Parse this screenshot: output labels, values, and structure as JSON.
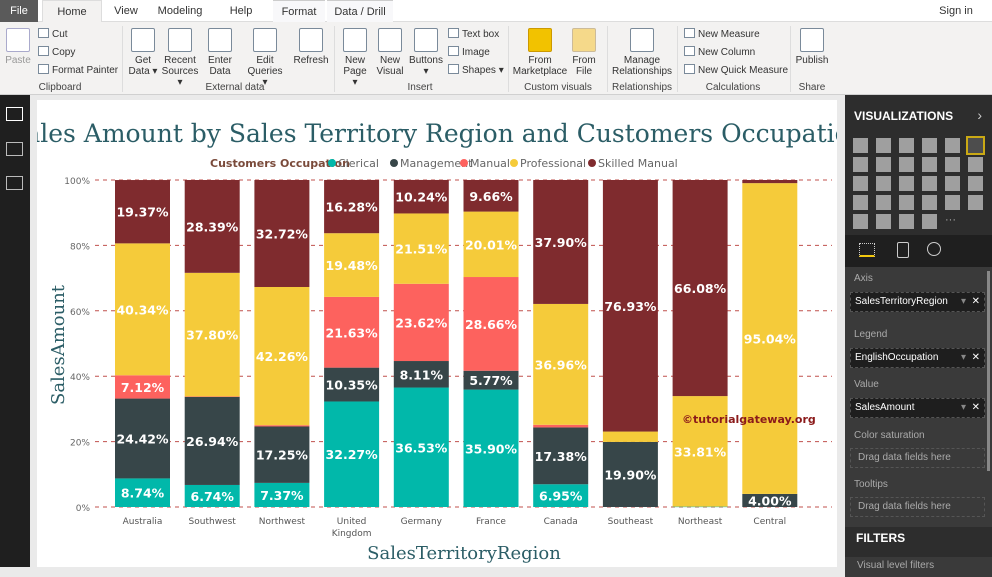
{
  "tabs": [
    "File",
    "Home",
    "View",
    "Modeling",
    "Help",
    "Format",
    "Data / Drill"
  ],
  "sign_in": "Sign in",
  "ribbon": {
    "clipboard": {
      "paste": "Paste",
      "cut": "Cut",
      "copy": "Copy",
      "format_painter": "Format Painter",
      "group": "Clipboard"
    },
    "external": {
      "get_data": "Get Data ▾",
      "recent": "Recent Sources ▾",
      "enter": "Enter Data",
      "edit": "Edit Queries ▾",
      "refresh": "Refresh",
      "group": "External data"
    },
    "insert": {
      "new_page": "New Page ▾",
      "new_visual": "New Visual",
      "buttons": "Buttons ▾",
      "text_box": "Text box",
      "image": "Image",
      "shapes": "Shapes ▾",
      "group": "Insert"
    },
    "custom": {
      "marketplace": "From Marketplace",
      "file": "From File",
      "group": "Custom visuals"
    },
    "relationships": {
      "manage": "Manage Relationships",
      "group": "Relationships"
    },
    "calc": {
      "measure": "New Measure",
      "column": "New Column",
      "quick": "New Quick Measure",
      "group": "Calculations"
    },
    "share": {
      "publish": "Publish",
      "group": "Share"
    }
  },
  "panel": {
    "title": "VISUALIZATIONS",
    "axis_label": "Axis",
    "axis_field": "SalesTerritoryRegion",
    "legend_label": "Legend",
    "legend_field": "EnglishOccupation",
    "value_label": "Value",
    "value_field": "SalesAmount",
    "color_label": "Color saturation",
    "color_drop": "Drag data fields here",
    "tooltips_label": "Tooltips",
    "tooltips_drop": "Drag data fields here",
    "filters": "FILTERS",
    "visual_filters": "Visual level filters"
  },
  "watermark": "©tutorialgateway.org",
  "chart_data": {
    "type": "bar",
    "stacked": "100%",
    "title": "Sales Amount by Sales Territory Region and Customers Occupation",
    "legend_title": "Customers Occupation",
    "legend_position": "top",
    "xlabel": "SalesTerritoryRegion",
    "ylabel": "SalesAmount",
    "ylim": [
      0,
      100
    ],
    "yticks": [
      "0%",
      "20%",
      "40%",
      "60%",
      "80%",
      "100%"
    ],
    "grid": true,
    "categories": [
      "Australia",
      "Southwest",
      "Northwest",
      "United Kingdom",
      "Germany",
      "France",
      "Canada",
      "Southeast",
      "Northeast",
      "Central"
    ],
    "series": [
      {
        "name": "Clerical",
        "color": "#01B8AA",
        "values": [
          8.74,
          6.74,
          7.37,
          32.27,
          36.53,
          35.9,
          6.95,
          0.0,
          0.11,
          0.0
        ]
      },
      {
        "name": "Management",
        "color": "#374649",
        "values": [
          24.42,
          26.94,
          17.25,
          10.35,
          8.11,
          5.77,
          17.38,
          19.9,
          0.0,
          4.0
        ]
      },
      {
        "name": "Manual",
        "color": "#FD625E",
        "values": [
          7.12,
          0.13,
          0.4,
          21.63,
          23.62,
          28.66,
          0.81,
          0.0,
          0.0,
          0.0
        ]
      },
      {
        "name": "Professional",
        "color": "#F5CB3A",
        "values": [
          40.34,
          37.8,
          42.26,
          19.48,
          21.51,
          20.01,
          36.96,
          3.17,
          33.81,
          95.04
        ]
      },
      {
        "name": "Skilled Manual",
        "color": "#7F2B2E",
        "values": [
          19.37,
          28.39,
          32.72,
          16.28,
          10.24,
          9.66,
          37.9,
          76.93,
          66.08,
          0.96
        ]
      }
    ]
  }
}
